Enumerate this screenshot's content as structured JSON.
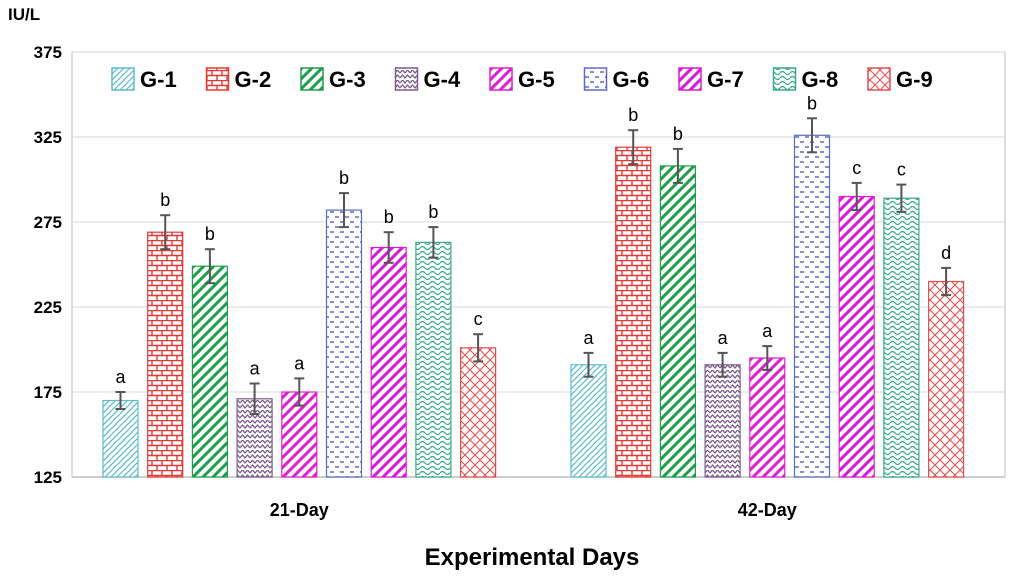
{
  "chart_data": {
    "type": "bar",
    "ylabel": "IU/L",
    "xlabel": "Experimental Days",
    "ylim": [
      125,
      375
    ],
    "yticks": [
      125,
      175,
      225,
      275,
      325,
      375
    ],
    "categories": [
      "21-Day",
      "42-Day"
    ],
    "legend_position": "top",
    "series": [
      {
        "name": "G-1",
        "values": [
          170,
          191
        ],
        "errors": [
          5,
          7
        ],
        "letters": [
          "a",
          "a"
        ],
        "color": "#5bbcd0",
        "pattern": "diag-right-fine"
      },
      {
        "name": "G-2",
        "values": [
          269,
          319
        ],
        "errors": [
          10,
          10
        ],
        "letters": [
          "b",
          "b"
        ],
        "color": "#e53935",
        "pattern": "brick"
      },
      {
        "name": "G-3",
        "values": [
          249,
          308
        ],
        "errors": [
          10,
          10
        ],
        "letters": [
          "b",
          "b"
        ],
        "color": "#1e9e4a",
        "pattern": "diag-wide"
      },
      {
        "name": "G-4",
        "values": [
          171,
          191
        ],
        "errors": [
          9,
          7
        ],
        "letters": [
          "a",
          "a"
        ],
        "color": "#7b5c8a",
        "pattern": "zigzag"
      },
      {
        "name": "G-5",
        "values": [
          175,
          195
        ],
        "errors": [
          8,
          7
        ],
        "letters": [
          "a",
          "a"
        ],
        "color": "#e020d0",
        "pattern": "diag-wide"
      },
      {
        "name": "G-6",
        "values": [
          282,
          326
        ],
        "errors": [
          10,
          10
        ],
        "letters": [
          "b",
          "b"
        ],
        "color": "#5a6ac8",
        "pattern": "dash"
      },
      {
        "name": "G-7",
        "values": [
          260,
          290
        ],
        "errors": [
          9,
          8
        ],
        "letters": [
          "b",
          "c"
        ],
        "color": "#d81ad8",
        "pattern": "diag-wide"
      },
      {
        "name": "G-8",
        "values": [
          263,
          289
        ],
        "errors": [
          9,
          8
        ],
        "letters": [
          "b",
          "c"
        ],
        "color": "#3aaa88",
        "pattern": "wave"
      },
      {
        "name": "G-9",
        "values": [
          201,
          240
        ],
        "errors": [
          8,
          8
        ],
        "letters": [
          "c",
          "d"
        ],
        "color": "#e05050",
        "pattern": "cross"
      }
    ]
  }
}
